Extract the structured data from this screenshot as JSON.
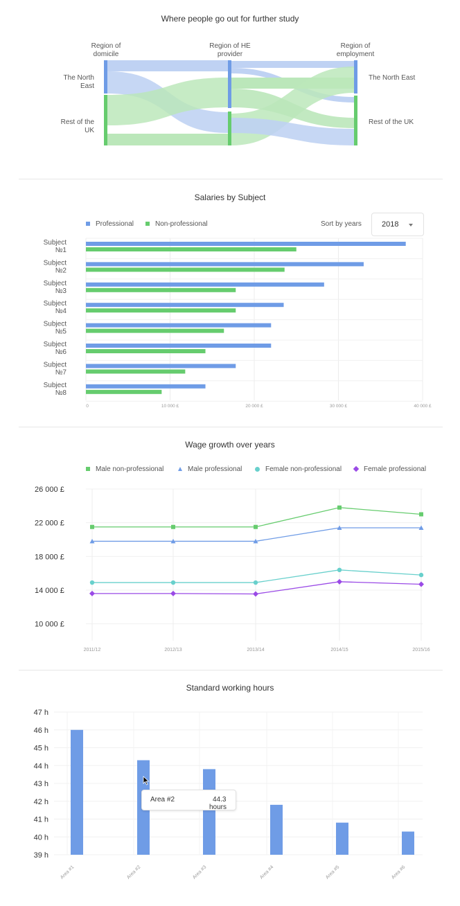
{
  "colors": {
    "blue": "#6f9ce6",
    "green": "#66cc6e",
    "teal": "#68d0cc",
    "purple": "#9a4ae6",
    "sankey_blue": "#bcd0f3",
    "sankey_green": "#b8e6b7"
  },
  "sankey": {
    "title": "Where people go out for further study",
    "col_headers": [
      "Region of\ndomicile",
      "Region of HE\nprovider",
      "Region of\nemployment"
    ],
    "left_labels": [
      "The North\nEast",
      "Rest of the\nUK"
    ],
    "right_labels": [
      "The North East",
      "Rest of the UK"
    ]
  },
  "salaries": {
    "title": "Salaries by Subject",
    "legend": [
      "Professional",
      "Non-professional"
    ],
    "sort_label": "Sort by years",
    "select_value": "2018"
  },
  "wage": {
    "title": "Wage growth over years",
    "legend": [
      "Male non-professional",
      "Male professional",
      "Female non-professional",
      "Female professional"
    ]
  },
  "hours": {
    "title": "Standard working hours",
    "tooltip": {
      "label": "Area #2",
      "value": "44.3",
      "unit": "hours"
    }
  },
  "chart_data": [
    {
      "type": "bar",
      "orientation": "horizontal",
      "title": "Salaries by Subject",
      "categories": [
        "Subject\n№1",
        "Subject\n№2",
        "Subject\n№3",
        "Subject\n№4",
        "Subject\n№5",
        "Subject\n№6",
        "Subject\n№7",
        "Subject\n№8"
      ],
      "series": [
        {
          "name": "Professional",
          "values": [
            38000,
            33000,
            28300,
            23500,
            22000,
            22000,
            17800,
            14200
          ]
        },
        {
          "name": "Non-professional",
          "values": [
            25000,
            23600,
            17800,
            17800,
            16400,
            14200,
            11800,
            9000
          ]
        }
      ],
      "xticks": [
        "0",
        "10 000 £",
        "20 000 £",
        "30 000 £",
        "40 000 £"
      ],
      "xlim": [
        0,
        40000
      ],
      "legend": "top-left",
      "grid": true
    },
    {
      "type": "line",
      "title": "Wage growth over years",
      "x": [
        "2011/12",
        "2012/13",
        "2013/14",
        "2014/15",
        "2015/16"
      ],
      "series": [
        {
          "name": "Male non-professional",
          "values": [
            21500,
            21500,
            21500,
            23800,
            23000
          ]
        },
        {
          "name": "Male professional",
          "values": [
            19800,
            19800,
            19800,
            21400,
            21400
          ]
        },
        {
          "name": "Female non-professional",
          "values": [
            14900,
            14900,
            14900,
            16400,
            15800
          ]
        },
        {
          "name": "Female professional",
          "values": [
            13600,
            13600,
            13550,
            15000,
            14700
          ]
        }
      ],
      "yticks": [
        "26 000 £",
        "22 000 £",
        "18 000 £",
        "14 000 £",
        "10 000 £"
      ],
      "ylim": [
        8000,
        26000
      ],
      "legend": "top",
      "grid": true
    },
    {
      "type": "bar",
      "title": "Standard working hours",
      "categories": [
        "Area #1",
        "Area #2",
        "Area #3",
        "Area #4",
        "Area #5",
        "Area #6"
      ],
      "values": [
        46.0,
        44.3,
        43.8,
        41.8,
        40.8,
        40.3
      ],
      "yticks": [
        "47 h",
        "46 h",
        "45 h",
        "44 h",
        "43 h",
        "42 h",
        "41 h",
        "40 h",
        "39 h"
      ],
      "ylim": [
        39,
        47
      ],
      "grid": true
    }
  ]
}
